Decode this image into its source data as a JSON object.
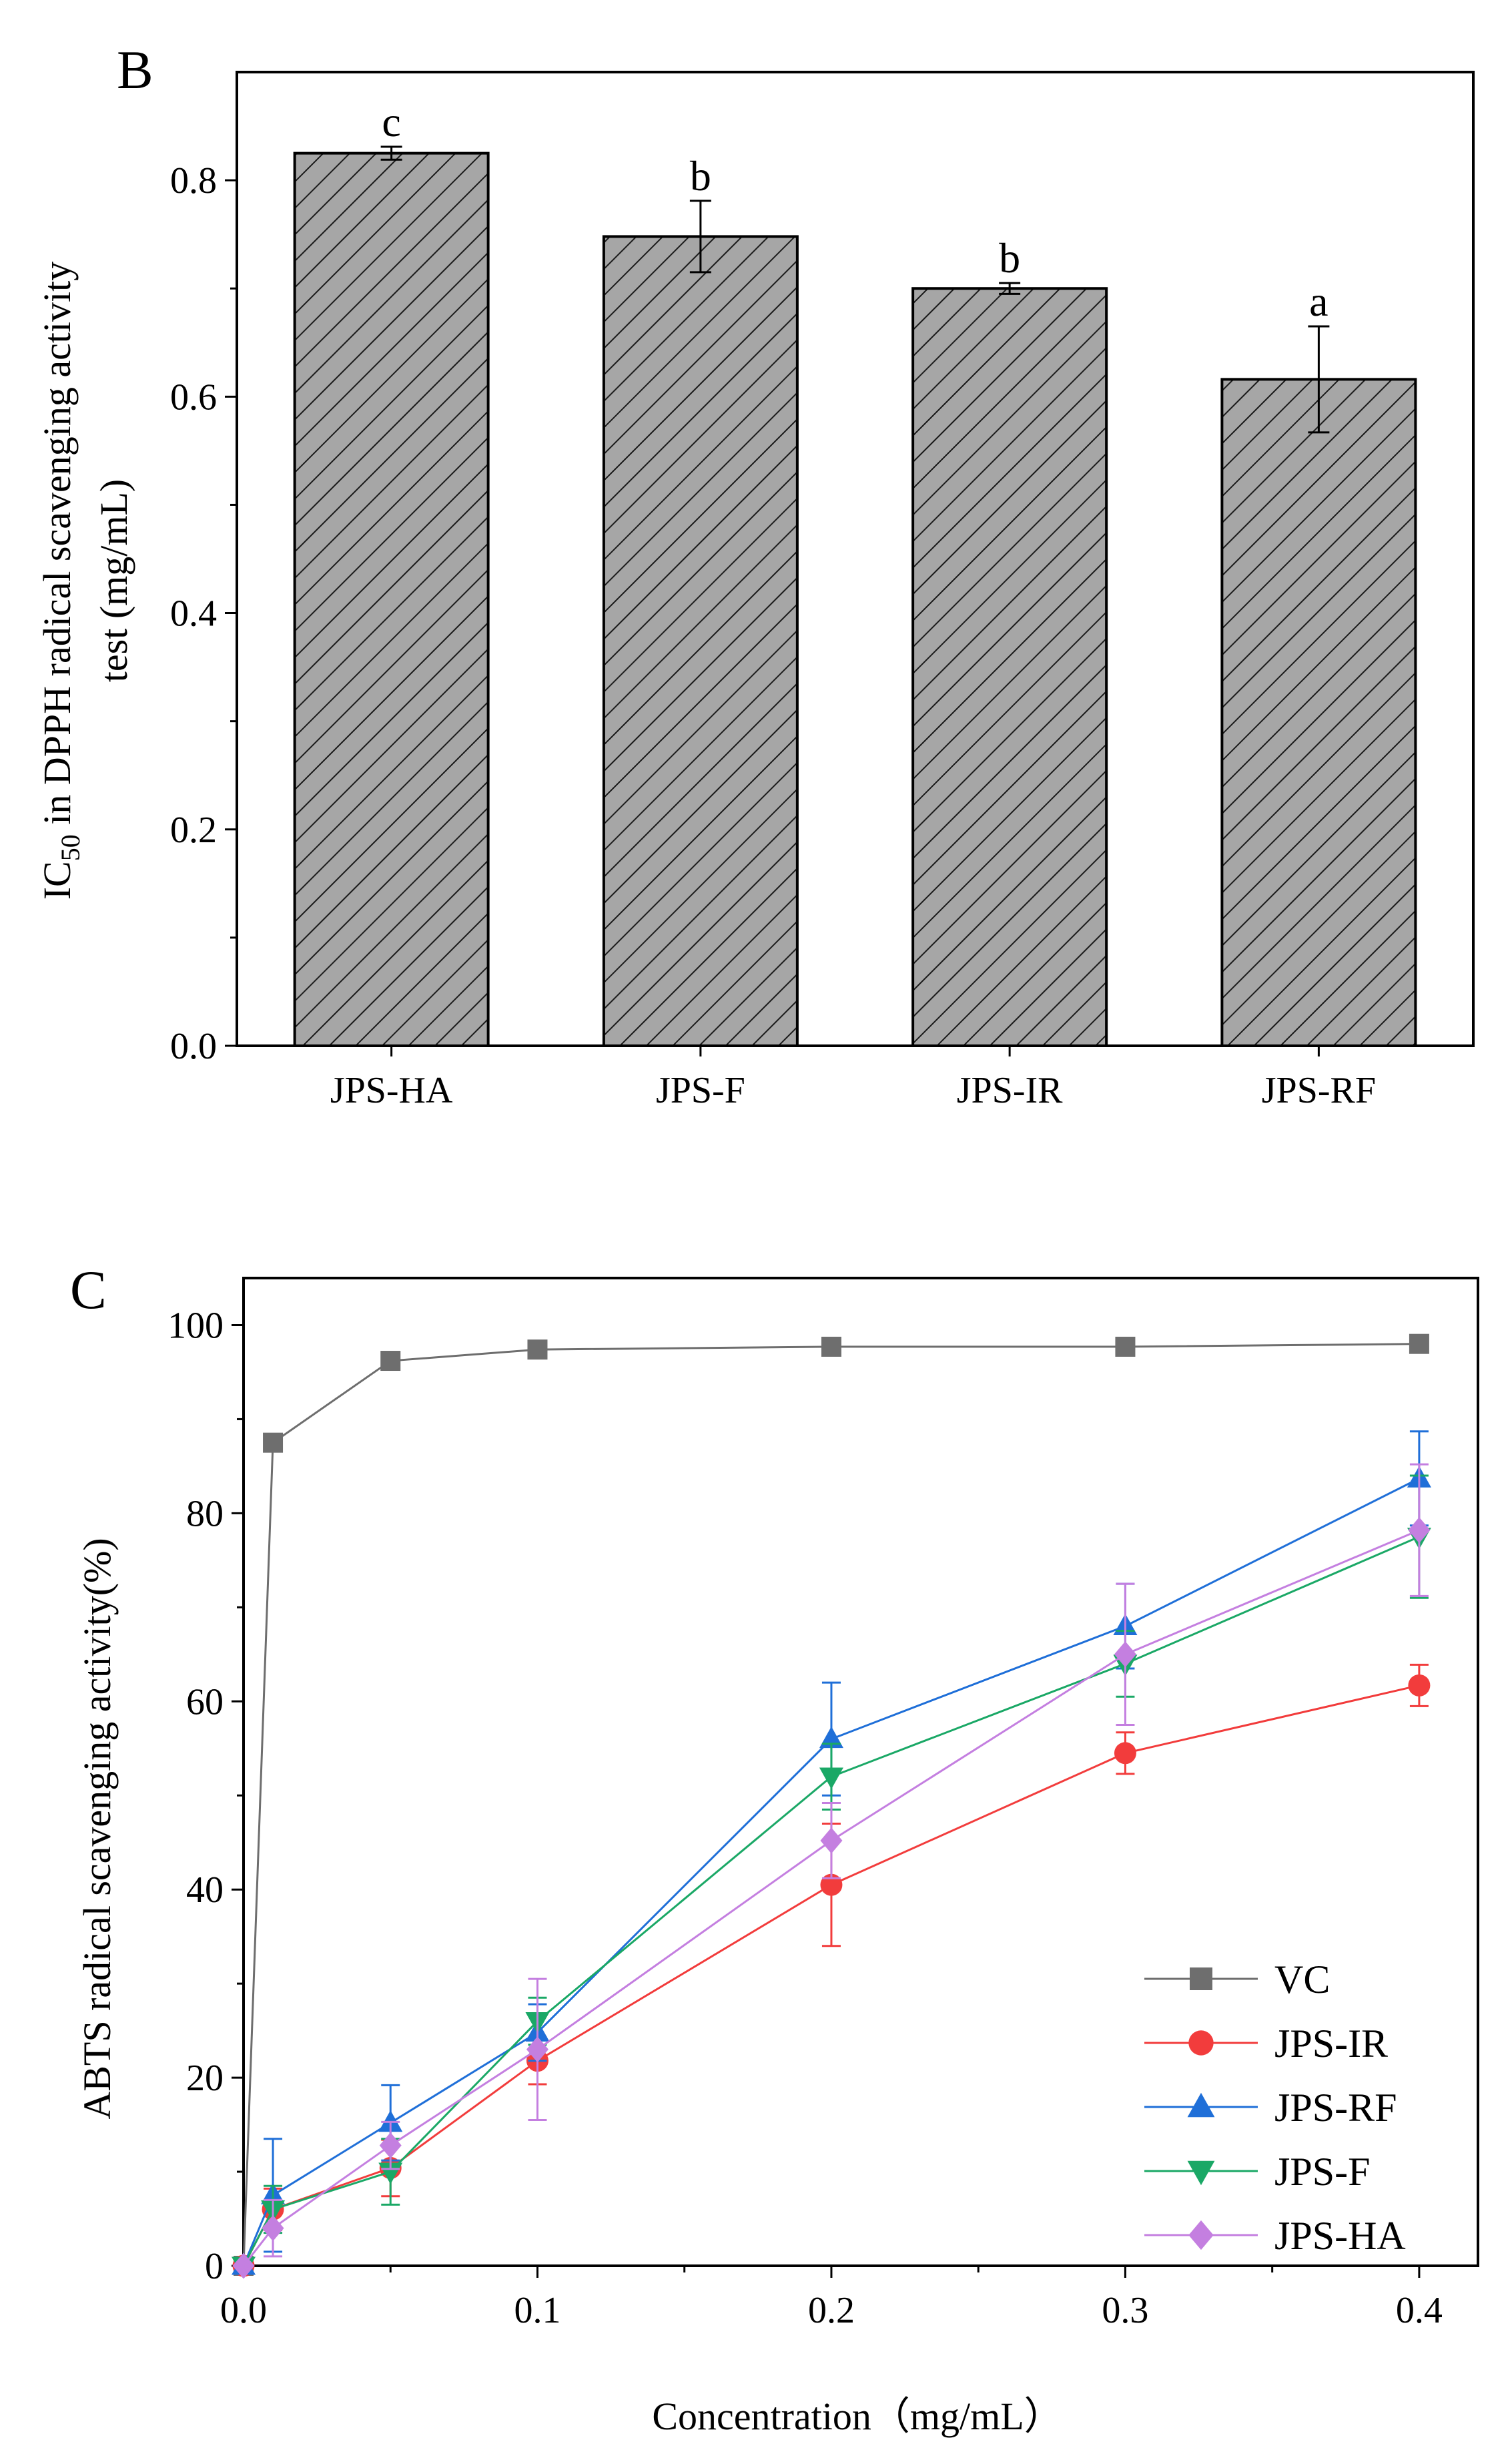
{
  "chart_data": [
    {
      "type": "bar",
      "panel_label": "B",
      "categories": [
        "JPS-HA",
        "JPS-F",
        "JPS-IR",
        "JPS-RF"
      ],
      "values": [
        0.825,
        0.748,
        0.7,
        0.616
      ],
      "errors": [
        0.006,
        0.033,
        0.005,
        0.049
      ],
      "significance": [
        "c",
        "b",
        "b",
        "a"
      ],
      "ylabel_main": "IC",
      "ylabel_sub": "50",
      "ylabel_rest": " in DPPH radical scavenging activity",
      "ylabel_line2": "test (mg/mL)",
      "ylim": [
        0,
        0.9
      ],
      "yticks": [
        0.0,
        0.2,
        0.4,
        0.6,
        0.8
      ],
      "ytick_labels": [
        "0.0",
        "0.2",
        "0.4",
        "0.6",
        "0.8"
      ],
      "bar_fill": "#a6a6a6",
      "hatch_color": "#1a1a1a"
    },
    {
      "type": "line",
      "panel_label": "C",
      "xlabel": "Concentration（mg/mL）",
      "ylabel": "ABTS radical scavenging activity(%)",
      "xlim": [
        0,
        0.42
      ],
      "ylim": [
        0,
        105
      ],
      "xticks": [
        0.0,
        0.1,
        0.2,
        0.3,
        0.4
      ],
      "xtick_labels": [
        "0.0",
        "0.1",
        "0.2",
        "0.3",
        "0.4"
      ],
      "yticks": [
        0,
        20,
        40,
        60,
        80,
        100
      ],
      "ytick_labels": [
        "0",
        "20",
        "40",
        "60",
        "80",
        "100"
      ],
      "x": [
        0,
        0.01,
        0.05,
        0.1,
        0.2,
        0.3,
        0.4
      ],
      "legend_position": "lower-right",
      "series": [
        {
          "name": "VC",
          "marker": "square",
          "color": "#6e6e6e",
          "values": [
            0,
            87.5,
            96.2,
            97.4,
            97.7,
            97.7,
            98.0
          ],
          "errors": [
            0,
            0,
            0,
            0,
            0,
            0,
            0
          ]
        },
        {
          "name": "JPS-IR",
          "marker": "circle",
          "color": "#f23c3c",
          "values": [
            0,
            6.0,
            10.4,
            21.8,
            40.5,
            54.5,
            61.7
          ],
          "errors": [
            0,
            2.2,
            3.0,
            2.5,
            6.5,
            2.2,
            2.2
          ]
        },
        {
          "name": "JPS-RF",
          "marker": "triangle-up",
          "color": "#1f6fd8",
          "values": [
            0,
            7.5,
            15.2,
            24.8,
            56.0,
            68.0,
            83.7
          ],
          "errors": [
            0,
            6.0,
            4.0,
            3.0,
            6.0,
            4.5,
            5.0
          ]
        },
        {
          "name": "JPS-F",
          "marker": "triangle-down",
          "color": "#1aa866",
          "values": [
            0,
            6.0,
            10.0,
            26.0,
            52.0,
            64.0,
            77.5
          ],
          "errors": [
            0,
            2.5,
            3.5,
            2.5,
            3.5,
            3.5,
            6.5
          ]
        },
        {
          "name": "JPS-HA",
          "marker": "diamond",
          "color": "#c47fe0",
          "values": [
            0,
            4.0,
            12.8,
            23.0,
            45.2,
            65.0,
            78.2
          ],
          "errors": [
            0,
            3.0,
            2.5,
            7.5,
            4.0,
            7.5,
            7.0
          ]
        }
      ]
    }
  ]
}
